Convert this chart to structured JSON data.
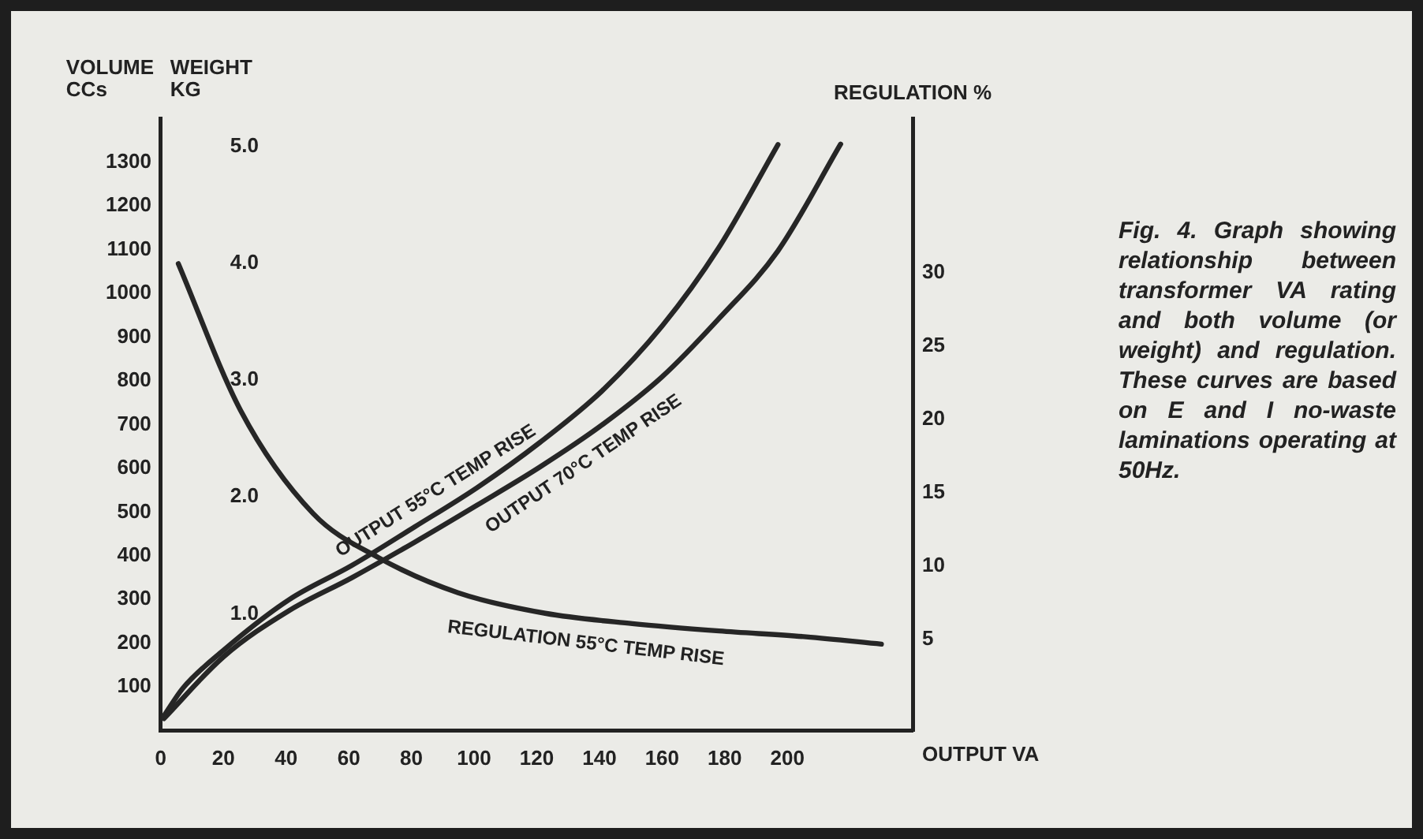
{
  "chart_data": {
    "type": "line",
    "xlabel": "OUTPUT VA",
    "ylabel": "VOLUME CCs",
    "y3label": "WEIGHT KG",
    "y2label": "REGULATION %",
    "annotations": [
      "Fig. 4. Graph showing relationship between transformer VA rating and both volume (or weight) and regulation. These curves are based on E and I no-waste laminations operating at 50Hz."
    ],
    "xlim": [
      0,
      240
    ],
    "xticks": [
      0,
      20,
      40,
      60,
      80,
      100,
      120,
      140,
      160,
      180,
      200
    ],
    "ylim": [
      0,
      1400
    ],
    "yticks": [
      100,
      200,
      300,
      400,
      500,
      600,
      700,
      800,
      900,
      1000,
      1100,
      1200,
      1300
    ],
    "y2lim": [
      -1.2,
      40.5
    ],
    "y2ticks": [
      5,
      10,
      15,
      20,
      25,
      30
    ],
    "y3lim": [
      0,
      5.24
    ],
    "y3ticks": [
      {
        "value": 1,
        "label": "1.0"
      },
      {
        "value": 2,
        "label": "2.0"
      },
      {
        "value": 3,
        "label": "3.0"
      },
      {
        "value": 4,
        "label": "4.0"
      },
      {
        "value": 5,
        "label": "5.0"
      }
    ],
    "grid": false,
    "legend": false,
    "marker": "none",
    "line_style": "solid",
    "series": [
      {
        "name": "OUTPUT 55°C TEMP RISE",
        "color": "#262626",
        "x": [
          1,
          7,
          20,
          41,
          61,
          81,
          101,
          121,
          141,
          160,
          178,
          197
        ],
        "values": [
          34,
          97,
          184,
          300,
          378,
          466,
          556,
          659,
          778,
          925,
          1103,
          1340
        ]
      },
      {
        "name": "OUTPUT 70°C TEMP RISE",
        "color": "#262626",
        "x": [
          1,
          20,
          41,
          61,
          81,
          101,
          121,
          141,
          160,
          178,
          197,
          217
        ],
        "values": [
          28,
          169,
          275,
          350,
          431,
          516,
          603,
          700,
          809,
          941,
          1097,
          1341
        ]
      },
      {
        "name": "REGULATION 55°C TEMP RISE",
        "color": "#262626",
        "axis": "y2",
        "x": [
          5.6,
          25.5,
          48.6,
          69.4,
          94.9,
          122.7,
          150.5,
          178.2,
          206,
          230
        ],
        "values": [
          30.6,
          20.6,
          13.6,
          10.6,
          8.2,
          6.8,
          6.1,
          5.6,
          5.2,
          4.7
        ]
      }
    ]
  }
}
